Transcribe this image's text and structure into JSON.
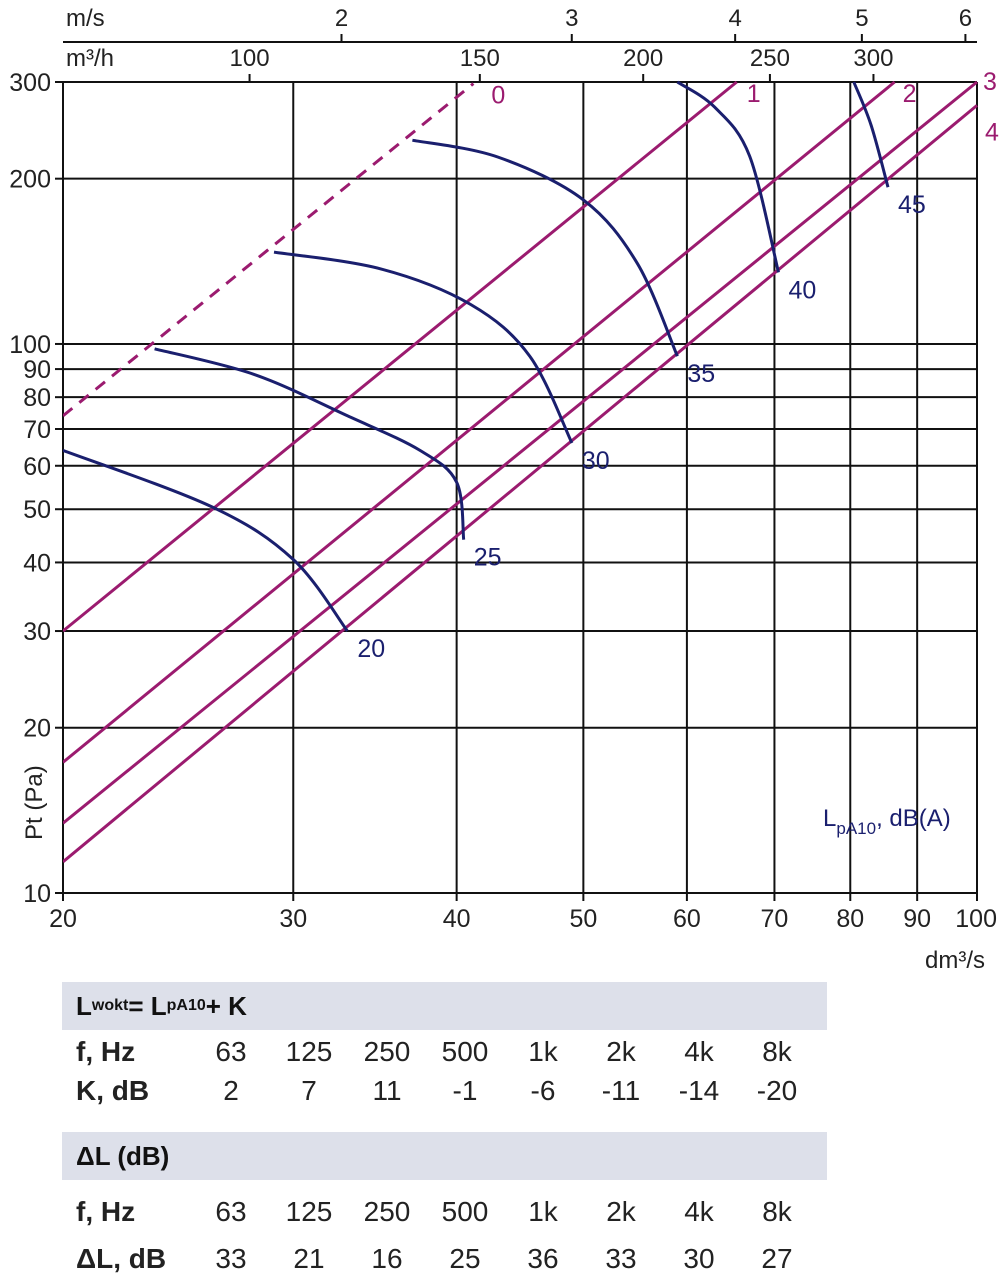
{
  "chart_data": {
    "type": "line",
    "x_scale": "log",
    "y_scale": "log",
    "xlim": [
      20,
      100
    ],
    "ylim": [
      10,
      300
    ],
    "xlabel": "dm³/s",
    "ylabel": "Pt (Pa)",
    "x_ticks": [
      20,
      30,
      40,
      50,
      60,
      70,
      80,
      90,
      100
    ],
    "y_ticks": [
      10,
      20,
      30,
      40,
      50,
      60,
      70,
      80,
      90,
      100,
      200,
      300
    ],
    "top_axis_1": {
      "label": "m³/h",
      "ticks": [
        100,
        150,
        200,
        250,
        300
      ]
    },
    "top_axis_2": {
      "label": "m/s",
      "ticks": [
        2,
        3,
        4,
        5,
        6
      ]
    },
    "grid": true,
    "system_lines": [
      {
        "name": "0",
        "x": [
          20,
          41.2
        ],
        "y": [
          74,
          298
        ],
        "dashed": true
      },
      {
        "name": "1",
        "x": [
          20,
          65.5
        ],
        "y": [
          30,
          300
        ]
      },
      {
        "name": "2",
        "x": [
          20,
          86.5
        ],
        "y": [
          17.3,
          300
        ]
      },
      {
        "name": "3",
        "x": [
          20,
          100
        ],
        "y": [
          13.4,
          300
        ]
      },
      {
        "name": "4",
        "x": [
          20,
          100
        ],
        "y": [
          11.4,
          272
        ]
      }
    ],
    "sound_curves": [
      {
        "name": "20",
        "x": [
          20,
          26,
          30,
          33
        ],
        "y": [
          64,
          50.5,
          40.5,
          30
        ]
      },
      {
        "name": "25",
        "x": [
          23.5,
          28,
          33,
          37.5,
          40,
          40.5
        ],
        "y": [
          98,
          88,
          74,
          64,
          56,
          44
        ]
      },
      {
        "name": "30",
        "x": [
          29,
          35,
          41,
          45.5,
          49
        ],
        "y": [
          147,
          137,
          118,
          95,
          66
        ]
      },
      {
        "name": "35",
        "x": [
          37,
          43,
          50,
          55,
          59
        ],
        "y": [
          235,
          219,
          183,
          140,
          95
        ]
      },
      {
        "name": "40",
        "x": [
          59,
          63,
          67,
          70.5
        ],
        "y": [
          300,
          270,
          220,
          135
        ]
      },
      {
        "name": "45",
        "x": [
          80.5,
          83,
          85.5
        ],
        "y": [
          300,
          250,
          193
        ]
      }
    ],
    "curve_label": "LpA10, dB(A)",
    "colors": {
      "system": "#9b1b6f",
      "sound": "#1a1f6e",
      "grid": "#111111"
    }
  },
  "tables": [
    {
      "header": {
        "main": "L",
        "sub": "wokt",
        "rest": " = L",
        "sub2": "pA10",
        "rest2": " + K"
      },
      "rows": [
        {
          "label": "f, Hz",
          "values": [
            "63",
            "125",
            "250",
            "500",
            "1k",
            "2k",
            "4k",
            "8k"
          ]
        },
        {
          "label": "K, dB",
          "values": [
            "2",
            "7",
            "11",
            "-1",
            "-6",
            "-11",
            "-14",
            "-20"
          ]
        }
      ]
    },
    {
      "header": {
        "main": "ΔL (dB)",
        "sub": "",
        "rest": "",
        "sub2": "",
        "rest2": ""
      },
      "rows": [
        {
          "label": "f, Hz",
          "values": [
            "63",
            "125",
            "250",
            "500",
            "1k",
            "2k",
            "4k",
            "8k"
          ]
        },
        {
          "label": "ΔL, dB",
          "values": [
            "33",
            "21",
            "16",
            "25",
            "36",
            "33",
            "30",
            "27"
          ]
        }
      ]
    }
  ]
}
